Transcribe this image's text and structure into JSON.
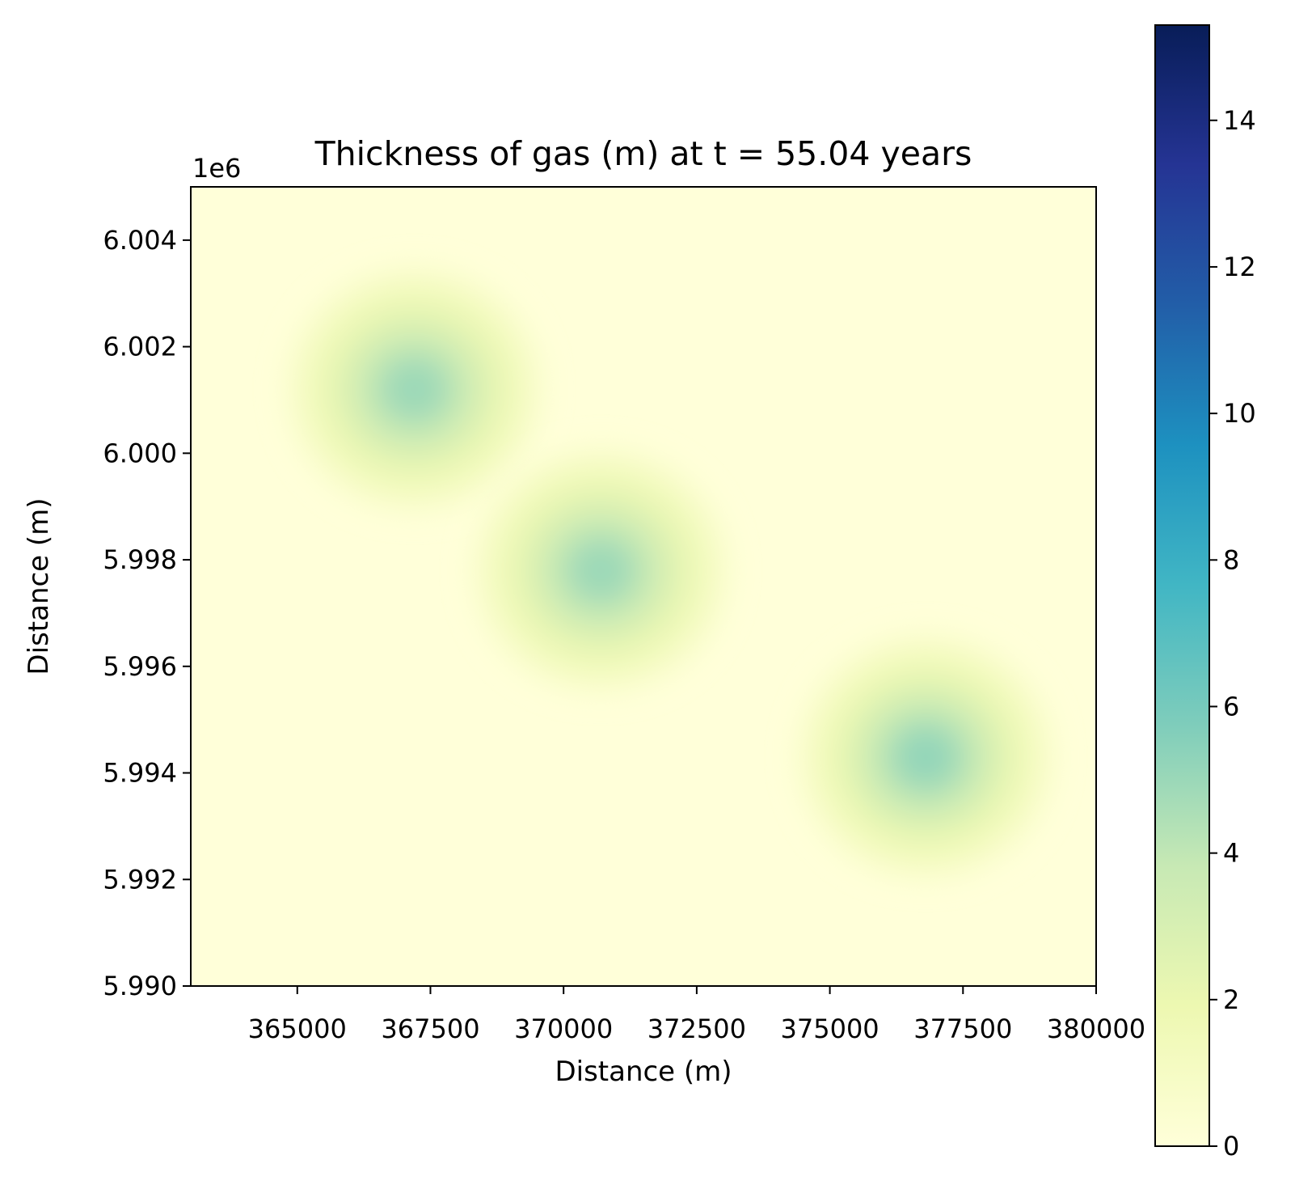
{
  "chart_data": {
    "type": "heatmap",
    "title": "Thickness of gas (m) at t = 55.04 years",
    "xlabel": "Distance (m)",
    "ylabel": "Distance (m)",
    "y_offset_label": "1e6",
    "xlim": [
      363000,
      380000
    ],
    "ylim": [
      5990000,
      6005000
    ],
    "x_ticks": [
      365000,
      367500,
      370000,
      372500,
      375000,
      377500,
      380000
    ],
    "x_tick_labels": [
      "365000",
      "367500",
      "370000",
      "372500",
      "375000",
      "377500",
      "380000"
    ],
    "y_ticks": [
      5990000,
      5992000,
      5994000,
      5996000,
      5998000,
      6000000,
      6002000,
      6004000
    ],
    "y_tick_labels": [
      "5.990",
      "5.992",
      "5.994",
      "5.996",
      "5.998",
      "6.000",
      "6.002",
      "6.004"
    ],
    "colorbar": {
      "colormap": "YlGnBu",
      "range": [
        0,
        15.3
      ],
      "ticks": [
        0,
        2,
        4,
        6,
        8,
        10,
        12,
        14
      ],
      "tick_labels": [
        "0",
        "2",
        "4",
        "6",
        "8",
        "10",
        "12",
        "14"
      ],
      "stops": [
        "#ffffd9",
        "#edf8b1",
        "#c7e9b4",
        "#7fcdbb",
        "#41b6c4",
        "#1d91c0",
        "#225ea8",
        "#253494",
        "#081d58"
      ]
    },
    "plumes": [
      {
        "x": 367200,
        "y": 6001200,
        "peak_thickness": 5.0
      },
      {
        "x": 370700,
        "y": 5997800,
        "peak_thickness": 5.0
      },
      {
        "x": 376800,
        "y": 5994300,
        "peak_thickness": 5.2
      }
    ],
    "grid": false,
    "legend": "none"
  }
}
